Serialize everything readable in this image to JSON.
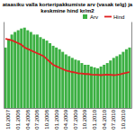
{
  "chart_data": {
    "type": "bar",
    "title": [
      "ataasiku valla korteripakkumiste arv (vasak telg) ja",
      "keskmine hind kr/m2"
    ],
    "categories": [
      null,
      "10.2007",
      null,
      null,
      "01.2008",
      null,
      null,
      "04.2008",
      null,
      null,
      "07.2008",
      null,
      null,
      "10.2008",
      null,
      null,
      "01.2009",
      null,
      null,
      "04.2009",
      null,
      null,
      "07.2009",
      null,
      null,
      "10.2009",
      null,
      null,
      "01.2010",
      null,
      null,
      "04.2010",
      null,
      null,
      "07.2010",
      null,
      null,
      "10.2010",
      null,
      null
    ],
    "series": [
      {
        "name": "Arv",
        "type": "bar",
        "color": "#3cb043",
        "values": [
          70,
          80,
          85,
          88,
          90,
          92,
          93,
          90,
          88,
          85,
          85,
          82,
          80,
          78,
          75,
          72,
          70,
          68,
          65,
          62,
          60,
          58,
          56,
          55,
          52,
          50,
          50,
          48,
          47,
          46,
          48,
          50,
          52,
          55,
          58,
          60,
          62,
          65,
          68,
          70
        ]
      },
      {
        "name": "Hind",
        "type": "line",
        "color": "#e02020",
        "axis": "y2",
        "values": [
          24000,
          23800,
          23500,
          23000,
          22500,
          22000,
          21000,
          20500,
          20000,
          19500,
          19000,
          18500,
          18000,
          17000,
          16000,
          15000,
          14500,
          14000,
          13500,
          13000,
          12800,
          12500,
          12300,
          12000,
          12000,
          11800,
          11800,
          11600,
          11500,
          11500,
          11400,
          11500,
          11600,
          11500,
          11400,
          11500,
          11700,
          12000,
          12200,
          12500
        ]
      }
    ],
    "ylim": [
      0,
      100
    ],
    "y2lim": [
      0,
      30000
    ],
    "tick_labels": "x",
    "legend": "top-right",
    "grid": false
  }
}
